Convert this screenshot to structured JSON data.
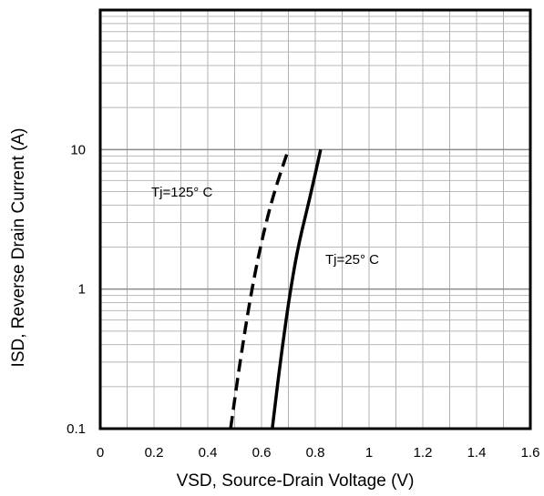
{
  "chart_data": {
    "type": "line",
    "xlabel": "VSD, Source-Drain Voltage (V)",
    "ylabel": "ISD, Reverse Drain Current (A)",
    "xlim": [
      0,
      1.6
    ],
    "ylim": [
      0.1,
      100
    ],
    "y_scale": "log",
    "x_ticks": [
      "0",
      "0.2",
      "0.4",
      "0.6",
      "0.8",
      "1",
      "1.2",
      "1.4",
      "1.6"
    ],
    "y_ticks": [
      {
        "value": 0.1,
        "label": "0.1"
      },
      {
        "value": 1,
        "label": "1"
      },
      {
        "value": 10,
        "label": "10"
      }
    ],
    "grid": true,
    "series": [
      {
        "name": "Tj=125° C",
        "style": "dashed",
        "color": "#000000",
        "x": [
          0.485,
          0.52,
          0.555,
          0.595,
          0.64,
          0.7
        ],
        "y": [
          0.1,
          0.3,
          0.8,
          2.0,
          4.5,
          10
        ]
      },
      {
        "name": "Tj=25° C",
        "style": "solid",
        "color": "#000000",
        "x": [
          0.64,
          0.67,
          0.7,
          0.735,
          0.78,
          0.82
        ],
        "y": [
          0.1,
          0.3,
          0.8,
          2.0,
          4.5,
          10
        ]
      }
    ],
    "annotations": [
      {
        "text": "Tj=125° C",
        "series": 0
      },
      {
        "text": "Tj=25° C",
        "series": 1
      }
    ]
  }
}
